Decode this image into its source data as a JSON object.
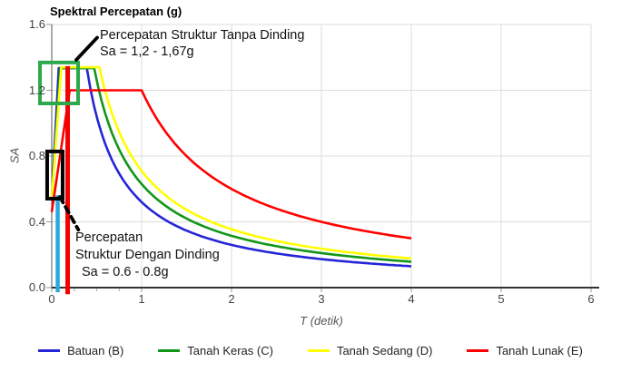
{
  "title": "Spektral Percepatan (g)",
  "axes": {
    "x": {
      "label": "T (detik)",
      "tick_labels": [
        "0",
        "1",
        "2",
        "3",
        "4",
        "5",
        "6"
      ],
      "tick_values": [
        0,
        1,
        2,
        3,
        4,
        5,
        6
      ],
      "minor_tick_values": [
        0.25,
        0.5,
        0.75
      ],
      "min": 0,
      "max": 6
    },
    "y": {
      "label": "SA",
      "tick_labels": [
        "0.0",
        "0.4",
        "0.8",
        "1.2",
        "1.6"
      ],
      "tick_values": [
        0,
        0.4,
        0.8,
        1.2,
        1.6
      ],
      "min": 0,
      "max": 1.6
    }
  },
  "chart_data": {
    "type": "line",
    "title": "Spektral Percepatan (g)",
    "xlabel": "T (detik)",
    "ylabel": "SA",
    "xlim": [
      0,
      6
    ],
    "ylim": [
      0,
      1.6
    ],
    "grid": true,
    "legend_position": "bottom",
    "series_model": "design response spectrum: Sa(0)=sa0, linear rise to plateau sds at t0, flat to ts, then sd1/T decay until t_end",
    "series": [
      {
        "name": "Batuan (B)",
        "color": "#2525d8",
        "sa0": 0.53,
        "t0": 0.078,
        "sds": 1.335,
        "ts": 0.39,
        "sd1": 0.52,
        "t_end": 4
      },
      {
        "name": "Tanah Keras (C)",
        "color": "#129618",
        "sa0": 0.53,
        "t0": 0.094,
        "sds": 1.335,
        "ts": 0.472,
        "sd1": 0.63,
        "t_end": 4
      },
      {
        "name": "Tanah Sedang (D)",
        "color": "#ffff00",
        "sa0": 0.54,
        "t0": 0.106,
        "sds": 1.34,
        "ts": 0.532,
        "sd1": 0.71,
        "t_end": 4
      },
      {
        "name": "Tanah Lunak (E)",
        "color": "#ff0000",
        "sa0": 0.46,
        "t0": 0.2,
        "sds": 1.2,
        "ts": 1.0,
        "sd1": 1.2,
        "t_end": 4
      }
    ]
  },
  "annotations": {
    "tanpa_dinding": {
      "line1": "Percepatan Struktur Tanpa Dinding",
      "line2": "Sa = 1,2 - 1,67g"
    },
    "dengan_dinding": {
      "line1": "Percepatan",
      "line2": "Struktur Dengan Dinding",
      "line3": "Sa = 0.6 - 0.8g"
    },
    "green_box": {
      "color": "#2ea84c",
      "t": [
        -0.131,
        0.293
      ],
      "sa": [
        1.12,
        1.369
      ]
    },
    "black_box": {
      "color": "#000000",
      "t": [
        -0.051,
        0.121
      ],
      "sa": [
        0.541,
        0.828
      ]
    },
    "cyan_vline": {
      "color": "#29a9e0",
      "t": 0.066,
      "sa": [
        -0.028,
        0.562
      ]
    },
    "red_vline": {
      "color": "#f20000",
      "t": 0.177,
      "sa": [
        -0.04,
        1.347
      ]
    },
    "leader_top": {
      "style": "solid",
      "from": [
        0.273,
        1.385
      ],
      "to": [
        0.505,
        1.52
      ]
    },
    "leader_bottom": {
      "style": "dashed",
      "from": [
        0.091,
        0.551
      ],
      "to": [
        0.296,
        0.352
      ]
    }
  },
  "style": {
    "gridline_color": "#dcdcdc",
    "axis_color": "#333333",
    "tick_color": "#999999",
    "text_color": "#444444"
  }
}
